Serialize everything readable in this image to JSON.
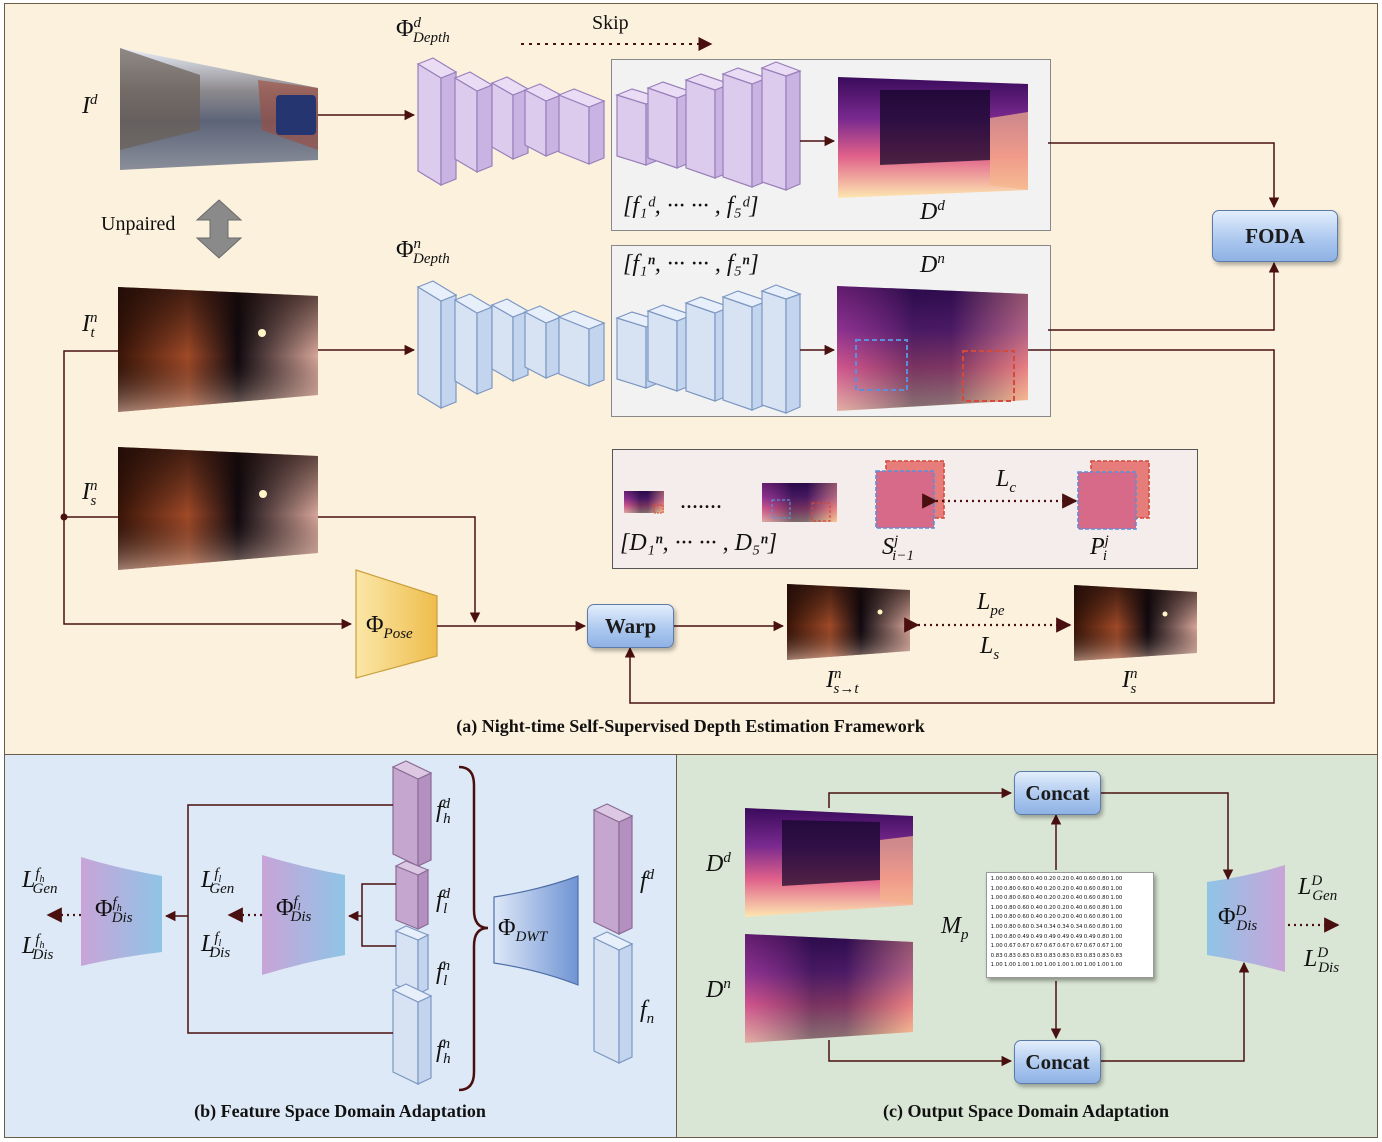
{
  "panels": {
    "a": {
      "caption": "(a)  Night-time Self-Supervised Depth Estimation Framework"
    },
    "b": {
      "caption": "(b) Feature Space Domain Adaptation"
    },
    "c": {
      "caption": "(c) Output Space Domain Adaptation"
    }
  },
  "labels": {
    "skip": "Skip",
    "unpaired": "Unpaired",
    "foda": "FODA",
    "warp": "Warp",
    "concat_top": "Concat",
    "concat_bottom": "Concat"
  },
  "math": {
    "I_d": "I",
    "I_d_sup": "d",
    "I_t": "I",
    "I_t_sub": "t",
    "I_t_sup": "n",
    "I_s": "I",
    "I_s_sub": "s",
    "I_s_sup": "n",
    "phi_depth_d": "Φ",
    "phi_depth_d_sub": "Depth",
    "phi_depth_d_sup": "d",
    "phi_depth_n": "Φ",
    "phi_depth_n_sub": "Depth",
    "phi_depth_n_sup": "n",
    "feat_d": "[f₁ᵈ, ···    ··· , f₅ᵈ]",
    "feat_n": "[f₁ⁿ, ···    ··· , f₅ⁿ]",
    "D_d": "D",
    "D_d_sup": "d",
    "D_n": "D",
    "D_n_sup": "n",
    "dots": ".......",
    "multi_D": "[D₁ⁿ, ···    ··· , D₅ⁿ]",
    "L_c": "L",
    "L_c_sub": "c",
    "S": "S",
    "S_sub": "i−1",
    "S_sup": "j",
    "P": "P",
    "P_sub": "i",
    "P_sup": "j",
    "phi_pose": "Φ",
    "phi_pose_sub": "Pose",
    "L_pe": "L",
    "L_pe_sub": "pe",
    "L_s": "L",
    "L_s_sub": "s",
    "I_st": "I",
    "I_st_sub": "s→t",
    "I_st_sup": "n",
    "I_s2": "I",
    "I_s2_sub": "s",
    "I_s2_sup": "n",
    "fh_d": "f",
    "fh_d_sub": "h",
    "fh_d_sup": "d",
    "fl_d": "f",
    "fl_d_sub": "l",
    "fl_d_sup": "d",
    "fl_n": "f",
    "fl_n_sub": "l",
    "fl_n_sup": "n",
    "fh_n": "f",
    "fh_n_sub": "h",
    "fh_n_sup": "n",
    "f_d": "f",
    "f_d_sup": "d",
    "f_n": "f",
    "f_n_sub": "n",
    "phi_dwt": "Φ",
    "phi_dwt_sub": "DWT",
    "phi_dis_fl": "Φ",
    "phi_dis_fl_sub": "Dis",
    "phi_dis_fl_sup": "f",
    "phi_dis_fl_supsub": "l",
    "phi_dis_fh": "Φ",
    "phi_dis_fh_sub": "Dis",
    "phi_dis_fh_sup": "f",
    "phi_dis_fh_supsub": "h",
    "L_gen_fl": "L",
    "L_gen_fl_sub": "Gen",
    "L_dis_fl": "L",
    "L_dis_fl_sub": "Dis",
    "L_gen_fh": "L",
    "L_gen_fh_sub": "Gen",
    "L_dis_fh": "L",
    "L_dis_fh_sub": "Dis",
    "sup_fl": "f",
    "sup_fl_sub": "l",
    "sup_fh": "f",
    "sup_fh_sub": "h",
    "Dd_c": "D",
    "Dd_c_sup": "d",
    "Dn_c": "D",
    "Dn_c_sup": "n",
    "Mp": "M",
    "Mp_sub": "p",
    "phi_dis_D": "Φ",
    "phi_dis_D_sub": "Dis",
    "phi_dis_D_sup": "D",
    "L_gen_D": "L",
    "L_gen_D_sub": "Gen",
    "L_gen_D_sup": "D",
    "L_dis_D": "L",
    "L_dis_D_sub": "Dis",
    "L_dis_D_sup": "D"
  },
  "matrix_mp": [
    [
      "1.00",
      "0.80",
      "0.60",
      "0.40",
      "0.20",
      "0.20",
      "0.40",
      "0.60",
      "0.80",
      "1.00"
    ],
    [
      "1.00",
      "0.80",
      "0.60",
      "0.40",
      "0.20",
      "0.20",
      "0.40",
      "0.60",
      "0.80",
      "1.00"
    ],
    [
      "1.00",
      "0.80",
      "0.60",
      "0.40",
      "0.20",
      "0.20",
      "0.40",
      "0.60",
      "0.80",
      "1.00"
    ],
    [
      "1.00",
      "0.80",
      "0.60",
      "0.40",
      "0.20",
      "0.20",
      "0.40",
      "0.60",
      "0.80",
      "1.00"
    ],
    [
      "1.00",
      "0.80",
      "0.60",
      "0.40",
      "0.20",
      "0.20",
      "0.40",
      "0.60",
      "0.80",
      "1.00"
    ],
    [
      "1.00",
      "0.80",
      "0.60",
      "0.34",
      "0.34",
      "0.34",
      "0.34",
      "0.60",
      "0.80",
      "1.00"
    ],
    [
      "1.00",
      "0.80",
      "0.49",
      "0.49",
      "0.49",
      "0.49",
      "0.49",
      "0.49",
      "0.80",
      "1.00"
    ],
    [
      "1.00",
      "0.67",
      "0.67",
      "0.67",
      "0.67",
      "0.67",
      "0.67",
      "0.67",
      "0.67",
      "1.00"
    ],
    [
      "0.83",
      "0.83",
      "0.83",
      "0.83",
      "0.83",
      "0.83",
      "0.83",
      "0.83",
      "0.83",
      "0.83"
    ],
    [
      "1.00",
      "1.00",
      "1.00",
      "1.00",
      "1.00",
      "1.00",
      "1.00",
      "1.00",
      "1.00",
      "1.00"
    ]
  ],
  "colors": {
    "panel_a_bg": "#fcf1dd",
    "panel_b_bg": "#dde9f6",
    "panel_c_bg": "#dae6d5",
    "encoder_day": "#dccbec",
    "encoder_night": "#d7e3f3",
    "pose": "#f3cf6a",
    "arrow": "#4a1010",
    "blue_dash": "#5b8fd9",
    "red_dash": "#d24a3b"
  }
}
